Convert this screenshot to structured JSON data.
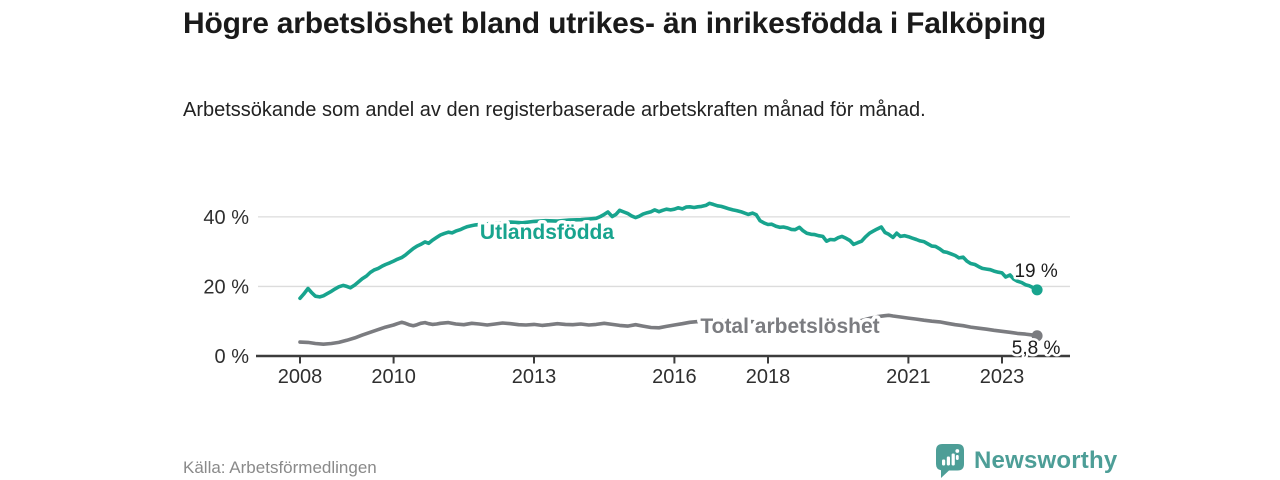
{
  "header": {
    "title": "Högre arbetslöshet bland utrikes- än inrikesfödda i Falköping",
    "subtitle": "Arbetssökande som andel av den registerbaserade arbetskraften månad för månad."
  },
  "footer": {
    "source": "Källa: Arbetsförmedlingen",
    "brand_name": "Newsworthy"
  },
  "colors": {
    "series_utlandsfodda": "#18a48e",
    "series_total": "#7b7c80",
    "brand_teal": "#4d9e97",
    "grid": "#dcdcdc",
    "axis": "#3c3c3c",
    "end_label_text": "#1c1c1c"
  },
  "chart_data": {
    "type": "line",
    "title": "Högre arbetslöshet bland utrikes- än inrikesfödda i Falköping",
    "xlabel": "",
    "ylabel": "",
    "grid": "horizontal",
    "legend": "inline-labels",
    "x_axis": {
      "ticks": [
        2008,
        2010,
        2013,
        2016,
        2018,
        2021,
        2023
      ],
      "labels": [
        "2008",
        "2010",
        "2013",
        "2016",
        "2018",
        "2021",
        "2023"
      ],
      "range": [
        2007.1,
        2024.5
      ]
    },
    "y_axis": {
      "ticks": [
        0,
        20,
        40
      ],
      "labels": [
        "0 %",
        "20 %",
        "40 %"
      ],
      "range": [
        0,
        46
      ]
    },
    "series": [
      {
        "name": "Utlandsfödda",
        "color": "#18a48e",
        "end_label": "19 %",
        "end_value": 19,
        "points": [
          [
            2008.0,
            16.6
          ],
          [
            2008.08,
            17.8
          ],
          [
            2008.17,
            19.4
          ],
          [
            2008.25,
            18.2
          ],
          [
            2008.33,
            17.2
          ],
          [
            2008.42,
            17.0
          ],
          [
            2008.5,
            17.3
          ],
          [
            2008.58,
            17.9
          ],
          [
            2008.67,
            18.6
          ],
          [
            2008.75,
            19.3
          ],
          [
            2008.83,
            19.9
          ],
          [
            2008.92,
            20.3
          ],
          [
            2009.0,
            20.0
          ],
          [
            2009.08,
            19.6
          ],
          [
            2009.17,
            20.4
          ],
          [
            2009.25,
            21.3
          ],
          [
            2009.33,
            22.2
          ],
          [
            2009.42,
            23.0
          ],
          [
            2009.5,
            24.0
          ],
          [
            2009.58,
            24.7
          ],
          [
            2009.67,
            25.2
          ],
          [
            2009.75,
            25.8
          ],
          [
            2009.83,
            26.3
          ],
          [
            2009.92,
            26.8
          ],
          [
            2010.0,
            27.3
          ],
          [
            2010.08,
            27.8
          ],
          [
            2010.17,
            28.3
          ],
          [
            2010.25,
            29.0
          ],
          [
            2010.33,
            29.9
          ],
          [
            2010.42,
            30.9
          ],
          [
            2010.5,
            31.6
          ],
          [
            2010.58,
            32.1
          ],
          [
            2010.67,
            32.8
          ],
          [
            2010.75,
            32.4
          ],
          [
            2010.83,
            33.3
          ],
          [
            2010.92,
            34.1
          ],
          [
            2011.0,
            34.8
          ],
          [
            2011.08,
            35.2
          ],
          [
            2011.17,
            35.6
          ],
          [
            2011.25,
            35.4
          ],
          [
            2011.33,
            35.9
          ],
          [
            2011.42,
            36.3
          ],
          [
            2011.5,
            36.8
          ],
          [
            2011.58,
            37.2
          ],
          [
            2011.67,
            37.5
          ],
          [
            2011.75,
            37.7
          ],
          [
            2012.0,
            38.0
          ],
          [
            2012.25,
            38.2
          ],
          [
            2012.5,
            38.5
          ],
          [
            2012.75,
            38.3
          ],
          [
            2013.0,
            38.7
          ],
          [
            2013.25,
            38.9
          ],
          [
            2013.5,
            38.8
          ],
          [
            2013.75,
            39.1
          ],
          [
            2014.0,
            39.2
          ],
          [
            2014.17,
            39.4
          ],
          [
            2014.33,
            39.6
          ],
          [
            2014.42,
            40.1
          ],
          [
            2014.5,
            40.7
          ],
          [
            2014.58,
            41.4
          ],
          [
            2014.67,
            40.1
          ],
          [
            2014.75,
            40.7
          ],
          [
            2014.83,
            41.9
          ],
          [
            2014.92,
            41.4
          ],
          [
            2015.0,
            41.0
          ],
          [
            2015.08,
            40.3
          ],
          [
            2015.17,
            39.8
          ],
          [
            2015.25,
            40.2
          ],
          [
            2015.33,
            40.8
          ],
          [
            2015.42,
            41.2
          ],
          [
            2015.5,
            41.5
          ],
          [
            2015.58,
            42.0
          ],
          [
            2015.67,
            41.5
          ],
          [
            2015.75,
            41.9
          ],
          [
            2015.83,
            42.2
          ],
          [
            2015.92,
            42.0
          ],
          [
            2016.0,
            42.2
          ],
          [
            2016.08,
            42.6
          ],
          [
            2016.17,
            42.3
          ],
          [
            2016.25,
            42.8
          ],
          [
            2016.33,
            42.9
          ],
          [
            2016.42,
            42.7
          ],
          [
            2016.5,
            42.9
          ],
          [
            2016.58,
            43.0
          ],
          [
            2016.67,
            43.3
          ],
          [
            2016.75,
            43.9
          ],
          [
            2016.83,
            43.6
          ],
          [
            2016.92,
            43.2
          ],
          [
            2017.0,
            43.0
          ],
          [
            2017.08,
            42.7
          ],
          [
            2017.17,
            42.3
          ],
          [
            2017.25,
            42.0
          ],
          [
            2017.33,
            41.8
          ],
          [
            2017.42,
            41.5
          ],
          [
            2017.5,
            41.1
          ],
          [
            2017.58,
            40.7
          ],
          [
            2017.67,
            41.1
          ],
          [
            2017.75,
            40.6
          ],
          [
            2017.83,
            38.9
          ],
          [
            2017.92,
            38.2
          ],
          [
            2018.0,
            37.8
          ],
          [
            2018.08,
            37.9
          ],
          [
            2018.17,
            37.3
          ],
          [
            2018.25,
            37.0
          ],
          [
            2018.33,
            37.1
          ],
          [
            2018.42,
            36.8
          ],
          [
            2018.5,
            36.4
          ],
          [
            2018.58,
            36.3
          ],
          [
            2018.67,
            37.0
          ],
          [
            2018.75,
            36.0
          ],
          [
            2018.83,
            35.3
          ],
          [
            2018.92,
            35.0
          ],
          [
            2019.0,
            34.9
          ],
          [
            2019.08,
            34.6
          ],
          [
            2019.17,
            34.4
          ],
          [
            2019.25,
            33.0
          ],
          [
            2019.33,
            33.5
          ],
          [
            2019.42,
            33.4
          ],
          [
            2019.5,
            34.0
          ],
          [
            2019.58,
            34.4
          ],
          [
            2019.67,
            33.8
          ],
          [
            2019.75,
            33.2
          ],
          [
            2019.83,
            32.1
          ],
          [
            2019.92,
            32.6
          ],
          [
            2020.0,
            33.0
          ],
          [
            2020.08,
            34.2
          ],
          [
            2020.17,
            35.3
          ],
          [
            2020.25,
            35.9
          ],
          [
            2020.33,
            36.5
          ],
          [
            2020.42,
            37.1
          ],
          [
            2020.5,
            35.5
          ],
          [
            2020.58,
            35.0
          ],
          [
            2020.67,
            34.1
          ],
          [
            2020.75,
            35.3
          ],
          [
            2020.83,
            34.4
          ],
          [
            2020.92,
            34.6
          ],
          [
            2021.0,
            34.3
          ],
          [
            2021.08,
            33.9
          ],
          [
            2021.17,
            33.5
          ],
          [
            2021.25,
            33.1
          ],
          [
            2021.33,
            32.9
          ],
          [
            2021.42,
            32.2
          ],
          [
            2021.5,
            31.6
          ],
          [
            2021.58,
            31.5
          ],
          [
            2021.67,
            30.8
          ],
          [
            2021.75,
            30.0
          ],
          [
            2021.83,
            29.8
          ],
          [
            2021.92,
            29.3
          ],
          [
            2022.0,
            28.9
          ],
          [
            2022.08,
            28.2
          ],
          [
            2022.17,
            28.4
          ],
          [
            2022.25,
            27.3
          ],
          [
            2022.33,
            26.6
          ],
          [
            2022.42,
            26.3
          ],
          [
            2022.5,
            25.7
          ],
          [
            2022.58,
            25.2
          ],
          [
            2022.67,
            25.0
          ],
          [
            2022.75,
            24.8
          ],
          [
            2022.83,
            24.4
          ],
          [
            2022.92,
            24.1
          ],
          [
            2023.0,
            23.9
          ],
          [
            2023.08,
            22.7
          ],
          [
            2023.17,
            23.3
          ],
          [
            2023.25,
            22.1
          ],
          [
            2023.33,
            21.5
          ],
          [
            2023.42,
            21.1
          ],
          [
            2023.5,
            20.5
          ],
          [
            2023.58,
            20.2
          ],
          [
            2023.67,
            19.6
          ],
          [
            2023.75,
            19.0
          ]
        ]
      },
      {
        "name": "Total arbetslöshet",
        "color": "#7b7c80",
        "end_label": "5,8 %",
        "end_value": 5.8,
        "points": [
          [
            2008.0,
            4.0
          ],
          [
            2008.17,
            3.9
          ],
          [
            2008.33,
            3.6
          ],
          [
            2008.5,
            3.4
          ],
          [
            2008.67,
            3.6
          ],
          [
            2008.83,
            3.9
          ],
          [
            2009.0,
            4.5
          ],
          [
            2009.17,
            5.2
          ],
          [
            2009.33,
            6.0
          ],
          [
            2009.5,
            6.8
          ],
          [
            2009.67,
            7.6
          ],
          [
            2009.83,
            8.3
          ],
          [
            2010.0,
            8.9
          ],
          [
            2010.08,
            9.3
          ],
          [
            2010.17,
            9.7
          ],
          [
            2010.25,
            9.4
          ],
          [
            2010.33,
            9.0
          ],
          [
            2010.42,
            8.7
          ],
          [
            2010.5,
            9.0
          ],
          [
            2010.58,
            9.4
          ],
          [
            2010.67,
            9.6
          ],
          [
            2010.75,
            9.3
          ],
          [
            2010.83,
            9.1
          ],
          [
            2010.92,
            9.2
          ],
          [
            2011.0,
            9.4
          ],
          [
            2011.17,
            9.6
          ],
          [
            2011.33,
            9.2
          ],
          [
            2011.5,
            9.0
          ],
          [
            2011.67,
            9.4
          ],
          [
            2011.83,
            9.2
          ],
          [
            2012.0,
            8.9
          ],
          [
            2012.17,
            9.2
          ],
          [
            2012.33,
            9.5
          ],
          [
            2012.5,
            9.3
          ],
          [
            2012.67,
            9.0
          ],
          [
            2012.83,
            8.9
          ],
          [
            2013.0,
            9.1
          ],
          [
            2013.17,
            8.8
          ],
          [
            2013.33,
            9.0
          ],
          [
            2013.5,
            9.3
          ],
          [
            2013.67,
            9.1
          ],
          [
            2013.83,
            9.0
          ],
          [
            2014.0,
            9.2
          ],
          [
            2014.17,
            8.9
          ],
          [
            2014.33,
            9.1
          ],
          [
            2014.5,
            9.4
          ],
          [
            2014.67,
            9.1
          ],
          [
            2014.83,
            8.8
          ],
          [
            2015.0,
            8.6
          ],
          [
            2015.17,
            9.0
          ],
          [
            2015.33,
            8.6
          ],
          [
            2015.5,
            8.2
          ],
          [
            2015.67,
            8.1
          ],
          [
            2015.83,
            8.5
          ],
          [
            2016.0,
            8.9
          ],
          [
            2016.17,
            9.3
          ],
          [
            2016.33,
            9.7
          ],
          [
            2016.5,
            9.9
          ],
          [
            2016.75,
            10.1
          ],
          [
            2017.0,
            10.2
          ],
          [
            2017.25,
            10.1
          ],
          [
            2017.5,
            10.0
          ],
          [
            2017.75,
            9.8
          ],
          [
            2018.0,
            9.7
          ],
          [
            2018.25,
            9.5
          ],
          [
            2018.5,
            9.4
          ],
          [
            2018.75,
            9.3
          ],
          [
            2019.0,
            9.2
          ],
          [
            2019.25,
            9.3
          ],
          [
            2019.5,
            9.4
          ],
          [
            2019.75,
            9.7
          ],
          [
            2020.0,
            10.2
          ],
          [
            2020.17,
            10.8
          ],
          [
            2020.33,
            11.3
          ],
          [
            2020.5,
            11.6
          ],
          [
            2020.58,
            11.7
          ],
          [
            2020.67,
            11.5
          ],
          [
            2020.83,
            11.2
          ],
          [
            2021.0,
            10.9
          ],
          [
            2021.17,
            10.6
          ],
          [
            2021.33,
            10.3
          ],
          [
            2021.5,
            10.0
          ],
          [
            2021.67,
            9.8
          ],
          [
            2021.83,
            9.4
          ],
          [
            2022.0,
            9.0
          ],
          [
            2022.17,
            8.7
          ],
          [
            2022.33,
            8.3
          ],
          [
            2022.5,
            8.0
          ],
          [
            2022.67,
            7.7
          ],
          [
            2022.83,
            7.4
          ],
          [
            2023.0,
            7.1
          ],
          [
            2023.17,
            6.8
          ],
          [
            2023.33,
            6.5
          ],
          [
            2023.5,
            6.3
          ],
          [
            2023.62,
            6.1
          ],
          [
            2023.75,
            5.8
          ]
        ]
      }
    ]
  }
}
